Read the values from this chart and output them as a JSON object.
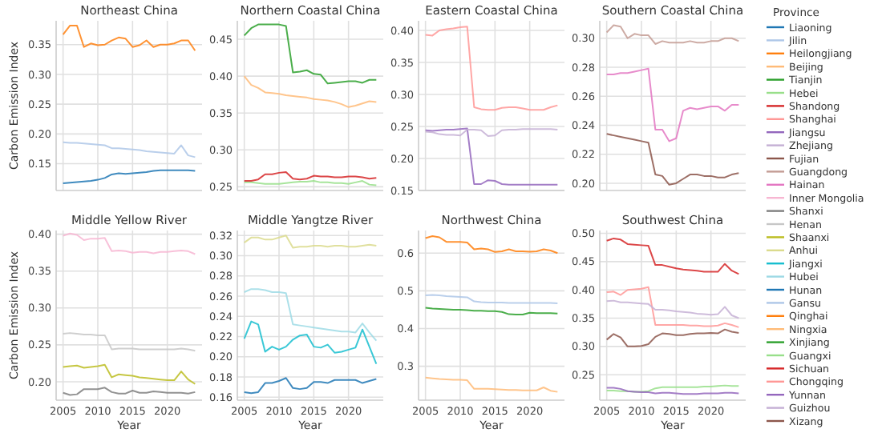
{
  "chart_data": [
    {
      "type": "line",
      "title": "Northeast China",
      "ylabel": "Carbon Emission Index",
      "x": [
        2005,
        2006,
        2007,
        2008,
        2009,
        2010,
        2011,
        2012,
        2013,
        2014,
        2015,
        2016,
        2017,
        2018,
        2019,
        2020,
        2021,
        2022,
        2023,
        2024
      ],
      "xlim": [
        2004,
        2025
      ],
      "xticks": [
        2005,
        2010,
        2015,
        2020
      ],
      "ylim": [
        0.105,
        0.39
      ],
      "yticks": [
        {
          "value": 0.15,
          "label": "0.15"
        },
        {
          "value": 0.2,
          "label": "0.20"
        },
        {
          "value": 0.25,
          "label": "0.25"
        },
        {
          "value": 0.3,
          "label": "0.30"
        },
        {
          "value": 0.35,
          "label": "0.35"
        }
      ],
      "grid": true,
      "tick_labels": "y",
      "legend": "right",
      "legend_title": "Province",
      "series": [
        {
          "name": "Liaoning",
          "color": "#1f77b4",
          "values": [
            0.117,
            0.118,
            0.119,
            0.12,
            0.121,
            0.123,
            0.126,
            0.132,
            0.134,
            0.133,
            0.134,
            0.135,
            0.136,
            0.138,
            0.139,
            0.139,
            0.139,
            0.139,
            0.139,
            0.138
          ]
        },
        {
          "name": "Jilin",
          "color": "#aec7e8",
          "values": [
            0.186,
            0.185,
            0.185,
            0.184,
            0.183,
            0.182,
            0.181,
            0.176,
            0.176,
            0.175,
            0.174,
            0.173,
            0.171,
            0.17,
            0.169,
            0.168,
            0.167,
            0.181,
            0.164,
            0.161
          ]
        },
        {
          "name": "Heilongjiang",
          "color": "#ff7f0e",
          "values": [
            0.367,
            0.382,
            0.382,
            0.346,
            0.352,
            0.349,
            0.35,
            0.357,
            0.362,
            0.36,
            0.346,
            0.349,
            0.357,
            0.346,
            0.35,
            0.35,
            0.352,
            0.357,
            0.357,
            0.34
          ]
        }
      ]
    },
    {
      "type": "line",
      "title": "Northern Coastal China",
      "x": [
        2005,
        2006,
        2007,
        2008,
        2009,
        2010,
        2011,
        2012,
        2013,
        2014,
        2015,
        2016,
        2017,
        2018,
        2019,
        2020,
        2021,
        2022,
        2023,
        2024
      ],
      "xlim": [
        2004,
        2025
      ],
      "xticks": [
        2005,
        2010,
        2015,
        2020
      ],
      "ylim": [
        0.245,
        0.475
      ],
      "yticks": [
        {
          "value": 0.25,
          "label": "0.25"
        },
        {
          "value": 0.3,
          "label": "0.30"
        },
        {
          "value": 0.35,
          "label": "0.35"
        },
        {
          "value": 0.4,
          "label": "0.40"
        },
        {
          "value": 0.45,
          "label": "0.45"
        }
      ],
      "grid": true,
      "tick_labels": "y",
      "legend": "right",
      "series": [
        {
          "name": "Beijing",
          "color": "#ffbb78",
          "values": [
            0.4,
            0.388,
            0.384,
            0.378,
            0.377,
            0.376,
            0.374,
            0.373,
            0.372,
            0.371,
            0.369,
            0.368,
            0.367,
            0.365,
            0.362,
            0.358,
            0.36,
            0.363,
            0.366,
            0.365
          ]
        },
        {
          "name": "Tianjin",
          "color": "#2ca02c",
          "values": [
            0.455,
            0.465,
            0.47,
            0.47,
            0.47,
            0.47,
            0.468,
            0.405,
            0.406,
            0.408,
            0.403,
            0.402,
            0.39,
            0.391,
            0.392,
            0.393,
            0.393,
            0.391,
            0.395,
            0.395
          ]
        },
        {
          "name": "Hebei",
          "color": "#98df8a",
          "values": [
            0.256,
            0.256,
            0.255,
            0.254,
            0.254,
            0.254,
            0.255,
            0.256,
            0.257,
            0.257,
            0.258,
            0.256,
            0.256,
            0.255,
            0.255,
            0.254,
            0.256,
            0.258,
            0.253,
            0.252
          ]
        },
        {
          "name": "Shandong",
          "color": "#d62728",
          "values": [
            0.258,
            0.258,
            0.26,
            0.267,
            0.267,
            0.269,
            0.27,
            0.261,
            0.26,
            0.261,
            0.265,
            0.264,
            0.264,
            0.263,
            0.263,
            0.264,
            0.264,
            0.263,
            0.261,
            0.262
          ]
        }
      ]
    },
    {
      "type": "line",
      "title": "Eastern Coastal China",
      "x": [
        2005,
        2006,
        2007,
        2008,
        2009,
        2010,
        2011,
        2012,
        2013,
        2014,
        2015,
        2016,
        2017,
        2018,
        2019,
        2020,
        2021,
        2022,
        2023,
        2024
      ],
      "xlim": [
        2004,
        2025
      ],
      "xticks": [
        2005,
        2010,
        2015,
        2020
      ],
      "ylim": [
        0.15,
        0.415
      ],
      "yticks": [
        {
          "value": 0.15,
          "label": "0.15"
        },
        {
          "value": 0.2,
          "label": "0.20"
        },
        {
          "value": 0.25,
          "label": "0.25"
        },
        {
          "value": 0.3,
          "label": "0.30"
        },
        {
          "value": 0.35,
          "label": "0.35"
        },
        {
          "value": 0.4,
          "label": "0.40"
        }
      ],
      "grid": true,
      "tick_labels": "y",
      "legend": "right",
      "series": [
        {
          "name": "Shanghai",
          "color": "#ff9896",
          "values": [
            0.393,
            0.392,
            0.4,
            0.402,
            0.403,
            0.405,
            0.406,
            0.28,
            0.277,
            0.276,
            0.276,
            0.279,
            0.28,
            0.28,
            0.278,
            0.276,
            0.276,
            0.276,
            0.28,
            0.283
          ]
        },
        {
          "name": "Jiangsu",
          "color": "#9467bd",
          "values": [
            0.244,
            0.243,
            0.244,
            0.245,
            0.245,
            0.246,
            0.247,
            0.16,
            0.16,
            0.166,
            0.165,
            0.16,
            0.159,
            0.159,
            0.159,
            0.159,
            0.159,
            0.159,
            0.159,
            0.159
          ]
        },
        {
          "name": "Zhejiang",
          "color": "#c5b0d5",
          "values": [
            0.242,
            0.241,
            0.238,
            0.237,
            0.237,
            0.236,
            0.245,
            0.245,
            0.244,
            0.235,
            0.236,
            0.244,
            0.245,
            0.245,
            0.246,
            0.246,
            0.246,
            0.246,
            0.246,
            0.245
          ]
        }
      ]
    },
    {
      "type": "line",
      "title": "Southern Coastal China",
      "x": [
        2005,
        2006,
        2007,
        2008,
        2009,
        2010,
        2011,
        2012,
        2013,
        2014,
        2015,
        2016,
        2017,
        2018,
        2019,
        2020,
        2021,
        2022,
        2023,
        2024
      ],
      "xlim": [
        2004,
        2025
      ],
      "xticks": [
        2005,
        2010,
        2015,
        2020
      ],
      "ylim": [
        0.195,
        0.312
      ],
      "yticks": [
        {
          "value": 0.2,
          "label": "0.20"
        },
        {
          "value": 0.22,
          "label": "0.22"
        },
        {
          "value": 0.24,
          "label": "0.24"
        },
        {
          "value": 0.26,
          "label": "0.26"
        },
        {
          "value": 0.28,
          "label": "0.28"
        },
        {
          "value": 0.3,
          "label": "0.30"
        }
      ],
      "grid": true,
      "tick_labels": "y",
      "legend": "right",
      "series": [
        {
          "name": "Fujian",
          "color": "#8c564b",
          "values": [
            0.234,
            0.233,
            0.232,
            0.231,
            0.23,
            0.229,
            0.228,
            0.206,
            0.205,
            0.199,
            0.2,
            0.203,
            0.206,
            0.206,
            0.205,
            0.205,
            0.204,
            0.204,
            0.206,
            0.207
          ]
        },
        {
          "name": "Guangdong",
          "color": "#c49c94",
          "values": [
            0.304,
            0.309,
            0.308,
            0.3,
            0.303,
            0.302,
            0.302,
            0.296,
            0.298,
            0.297,
            0.297,
            0.297,
            0.298,
            0.297,
            0.297,
            0.298,
            0.298,
            0.3,
            0.3,
            0.298
          ]
        },
        {
          "name": "Hainan",
          "color": "#e377c2",
          "values": [
            0.275,
            0.275,
            0.276,
            0.276,
            0.277,
            0.278,
            0.279,
            0.237,
            0.237,
            0.229,
            0.231,
            0.25,
            0.252,
            0.251,
            0.252,
            0.253,
            0.253,
            0.25,
            0.254,
            0.254
          ]
        }
      ]
    },
    {
      "type": "line",
      "title": "Middle Yellow River",
      "ylabel": "Carbon Emission Index",
      "xlabel": "Year",
      "x": [
        2005,
        2006,
        2007,
        2008,
        2009,
        2010,
        2011,
        2012,
        2013,
        2014,
        2015,
        2016,
        2017,
        2018,
        2019,
        2020,
        2021,
        2022,
        2023,
        2024
      ],
      "xlim": [
        2004,
        2025
      ],
      "xticks": [
        2005,
        2010,
        2015,
        2020
      ],
      "ylim": [
        0.175,
        0.405
      ],
      "yticks": [
        {
          "value": 0.2,
          "label": "0.20"
        },
        {
          "value": 0.25,
          "label": "0.25"
        },
        {
          "value": 0.3,
          "label": "0.30"
        },
        {
          "value": 0.35,
          "label": "0.35"
        },
        {
          "value": 0.4,
          "label": "0.40"
        }
      ],
      "grid": true,
      "legend": "right",
      "series": [
        {
          "name": "Inner Mongolia",
          "color": "#f7b6d2",
          "values": [
            0.398,
            0.401,
            0.399,
            0.392,
            0.394,
            0.394,
            0.395,
            0.377,
            0.378,
            0.377,
            0.375,
            0.376,
            0.376,
            0.374,
            0.376,
            0.376,
            0.377,
            0.378,
            0.377,
            0.373
          ]
        },
        {
          "name": "Shanxi",
          "color": "#7f7f7f",
          "values": [
            0.185,
            0.182,
            0.183,
            0.19,
            0.19,
            0.19,
            0.192,
            0.186,
            0.184,
            0.184,
            0.188,
            0.185,
            0.185,
            0.187,
            0.186,
            0.185,
            0.185,
            0.185,
            0.184,
            0.186
          ]
        },
        {
          "name": "Henan",
          "color": "#c7c7c7",
          "values": [
            0.265,
            0.266,
            0.265,
            0.264,
            0.264,
            0.263,
            0.263,
            0.244,
            0.245,
            0.245,
            0.245,
            0.244,
            0.244,
            0.244,
            0.244,
            0.244,
            0.244,
            0.245,
            0.244,
            0.242
          ]
        },
        {
          "name": "Shaanxi",
          "color": "#bcbd22",
          "values": [
            0.22,
            0.221,
            0.222,
            0.219,
            0.22,
            0.221,
            0.223,
            0.206,
            0.21,
            0.209,
            0.208,
            0.206,
            0.205,
            0.204,
            0.203,
            0.202,
            0.202,
            0.214,
            0.203,
            0.197
          ]
        }
      ]
    },
    {
      "type": "line",
      "title": "Middle Yangtze River",
      "xlabel": "Year",
      "x": [
        2005,
        2006,
        2007,
        2008,
        2009,
        2010,
        2011,
        2012,
        2013,
        2014,
        2015,
        2016,
        2017,
        2018,
        2019,
        2020,
        2021,
        2022,
        2023,
        2024
      ],
      "xlim": [
        2004,
        2025
      ],
      "xticks": [
        2005,
        2010,
        2015,
        2020
      ],
      "ylim": [
        0.157,
        0.325
      ],
      "yticks": [
        {
          "value": 0.16,
          "label": "0.16"
        },
        {
          "value": 0.18,
          "label": "0.18"
        },
        {
          "value": 0.2,
          "label": "0.20"
        },
        {
          "value": 0.22,
          "label": "0.22"
        },
        {
          "value": 0.24,
          "label": "0.24"
        },
        {
          "value": 0.26,
          "label": "0.26"
        },
        {
          "value": 0.28,
          "label": "0.28"
        },
        {
          "value": 0.3,
          "label": "0.30"
        },
        {
          "value": 0.32,
          "label": "0.32"
        }
      ],
      "grid": true,
      "legend": "right",
      "series": [
        {
          "name": "Anhui",
          "color": "#dbdb8d",
          "values": [
            0.313,
            0.318,
            0.318,
            0.316,
            0.316,
            0.318,
            0.32,
            0.308,
            0.309,
            0.309,
            0.31,
            0.31,
            0.309,
            0.31,
            0.31,
            0.309,
            0.309,
            0.31,
            0.311,
            0.31
          ]
        },
        {
          "name": "Jiangxi",
          "color": "#17becf",
          "values": [
            0.218,
            0.235,
            0.232,
            0.205,
            0.21,
            0.207,
            0.21,
            0.217,
            0.221,
            0.222,
            0.21,
            0.209,
            0.212,
            0.204,
            0.205,
            0.207,
            0.209,
            0.227,
            0.21,
            0.193
          ]
        },
        {
          "name": "Hubei",
          "color": "#9edae5",
          "values": [
            0.264,
            0.267,
            0.267,
            0.266,
            0.264,
            0.264,
            0.263,
            0.232,
            0.231,
            0.23,
            0.229,
            0.228,
            0.227,
            0.226,
            0.225,
            0.225,
            0.224,
            0.233,
            0.224,
            0.216
          ]
        },
        {
          "name": "Hunan",
          "color": "#1f77b4",
          "values": [
            0.165,
            0.164,
            0.165,
            0.174,
            0.174,
            0.176,
            0.179,
            0.169,
            0.168,
            0.169,
            0.175,
            0.175,
            0.174,
            0.177,
            0.177,
            0.177,
            0.177,
            0.174,
            0.176,
            0.178
          ]
        }
      ]
    },
    {
      "type": "line",
      "title": "Northwest China",
      "xlabel": "Year",
      "x": [
        2005,
        2006,
        2007,
        2008,
        2009,
        2010,
        2011,
        2012,
        2013,
        2014,
        2015,
        2016,
        2017,
        2018,
        2019,
        2020,
        2021,
        2022,
        2023,
        2024
      ],
      "xlim": [
        2004,
        2025
      ],
      "xticks": [
        2005,
        2010,
        2015,
        2020
      ],
      "ylim": [
        0.21,
        0.66
      ],
      "yticks": [
        {
          "value": 0.3,
          "label": "0.3"
        },
        {
          "value": 0.4,
          "label": "0.4"
        },
        {
          "value": 0.5,
          "label": "0.5"
        },
        {
          "value": 0.6,
          "label": "0.6"
        }
      ],
      "grid": true,
      "legend": "right",
      "series": [
        {
          "name": "Gansu",
          "color": "#aec7e8",
          "values": [
            0.488,
            0.489,
            0.488,
            0.486,
            0.485,
            0.484,
            0.483,
            0.472,
            0.47,
            0.469,
            0.469,
            0.469,
            0.468,
            0.468,
            0.468,
            0.468,
            0.468,
            0.468,
            0.468,
            0.467
          ]
        },
        {
          "name": "Qinghai",
          "color": "#ff7f0e",
          "values": [
            0.64,
            0.645,
            0.642,
            0.63,
            0.63,
            0.63,
            0.628,
            0.61,
            0.612,
            0.61,
            0.603,
            0.605,
            0.61,
            0.605,
            0.605,
            0.604,
            0.605,
            0.61,
            0.607,
            0.6
          ]
        },
        {
          "name": "Ningxia",
          "color": "#ffbb78",
          "values": [
            0.27,
            0.268,
            0.266,
            0.265,
            0.264,
            0.264,
            0.263,
            0.24,
            0.24,
            0.24,
            0.239,
            0.238,
            0.237,
            0.237,
            0.236,
            0.236,
            0.236,
            0.244,
            0.235,
            0.232
          ]
        },
        {
          "name": "Xinjiang",
          "color": "#2ca02c",
          "values": [
            0.455,
            0.453,
            0.452,
            0.451,
            0.45,
            0.45,
            0.449,
            0.447,
            0.447,
            0.446,
            0.446,
            0.444,
            0.438,
            0.437,
            0.437,
            0.442,
            0.441,
            0.441,
            0.441,
            0.44
          ]
        }
      ]
    },
    {
      "type": "line",
      "title": "Southwest China",
      "xlabel": "Year",
      "x": [
        2005,
        2006,
        2007,
        2008,
        2009,
        2010,
        2011,
        2012,
        2013,
        2014,
        2015,
        2016,
        2017,
        2018,
        2019,
        2020,
        2021,
        2022,
        2023,
        2024
      ],
      "xlim": [
        2004,
        2025
      ],
      "xticks": [
        2005,
        2010,
        2015,
        2020
      ],
      "ylim": [
        0.205,
        0.505
      ],
      "yticks": [
        {
          "value": 0.25,
          "label": "0.25"
        },
        {
          "value": 0.3,
          "label": "0.30"
        },
        {
          "value": 0.35,
          "label": "0.35"
        },
        {
          "value": 0.4,
          "label": "0.40"
        },
        {
          "value": 0.45,
          "label": "0.45"
        },
        {
          "value": 0.5,
          "label": "0.50"
        }
      ],
      "grid": true,
      "legend": "right",
      "series": [
        {
          "name": "Guangxi",
          "color": "#98df8a",
          "values": [
            0.222,
            0.222,
            0.221,
            0.221,
            0.22,
            0.22,
            0.221,
            0.226,
            0.228,
            0.228,
            0.228,
            0.228,
            0.228,
            0.228,
            0.229,
            0.229,
            0.23,
            0.231,
            0.23,
            0.23
          ]
        },
        {
          "name": "Sichuan",
          "color": "#d62728",
          "values": [
            0.487,
            0.491,
            0.489,
            0.481,
            0.48,
            0.479,
            0.478,
            0.444,
            0.444,
            0.441,
            0.438,
            0.436,
            0.435,
            0.434,
            0.432,
            0.432,
            0.432,
            0.446,
            0.434,
            0.428
          ]
        },
        {
          "name": "Chongqing",
          "color": "#ff9896",
          "values": [
            0.396,
            0.397,
            0.391,
            0.4,
            0.401,
            0.402,
            0.405,
            0.338,
            0.338,
            0.338,
            0.338,
            0.338,
            0.337,
            0.337,
            0.336,
            0.336,
            0.337,
            0.341,
            0.338,
            0.334
          ]
        },
        {
          "name": "Yunnan",
          "color": "#9467bd",
          "values": [
            0.227,
            0.227,
            0.225,
            0.221,
            0.22,
            0.219,
            0.219,
            0.217,
            0.218,
            0.218,
            0.217,
            0.216,
            0.216,
            0.216,
            0.217,
            0.217,
            0.217,
            0.218,
            0.218,
            0.217
          ]
        },
        {
          "name": "Guizhou",
          "color": "#c5b0d5",
          "values": [
            0.38,
            0.381,
            0.378,
            0.378,
            0.377,
            0.376,
            0.375,
            0.365,
            0.365,
            0.364,
            0.362,
            0.361,
            0.36,
            0.358,
            0.357,
            0.356,
            0.357,
            0.37,
            0.355,
            0.35
          ]
        },
        {
          "name": "Xizang",
          "color": "#8c564b",
          "values": [
            0.312,
            0.322,
            0.316,
            0.3,
            0.3,
            0.301,
            0.304,
            0.317,
            0.323,
            0.322,
            0.32,
            0.32,
            0.322,
            0.323,
            0.323,
            0.324,
            0.323,
            0.33,
            0.326,
            0.324
          ]
        }
      ]
    }
  ]
}
